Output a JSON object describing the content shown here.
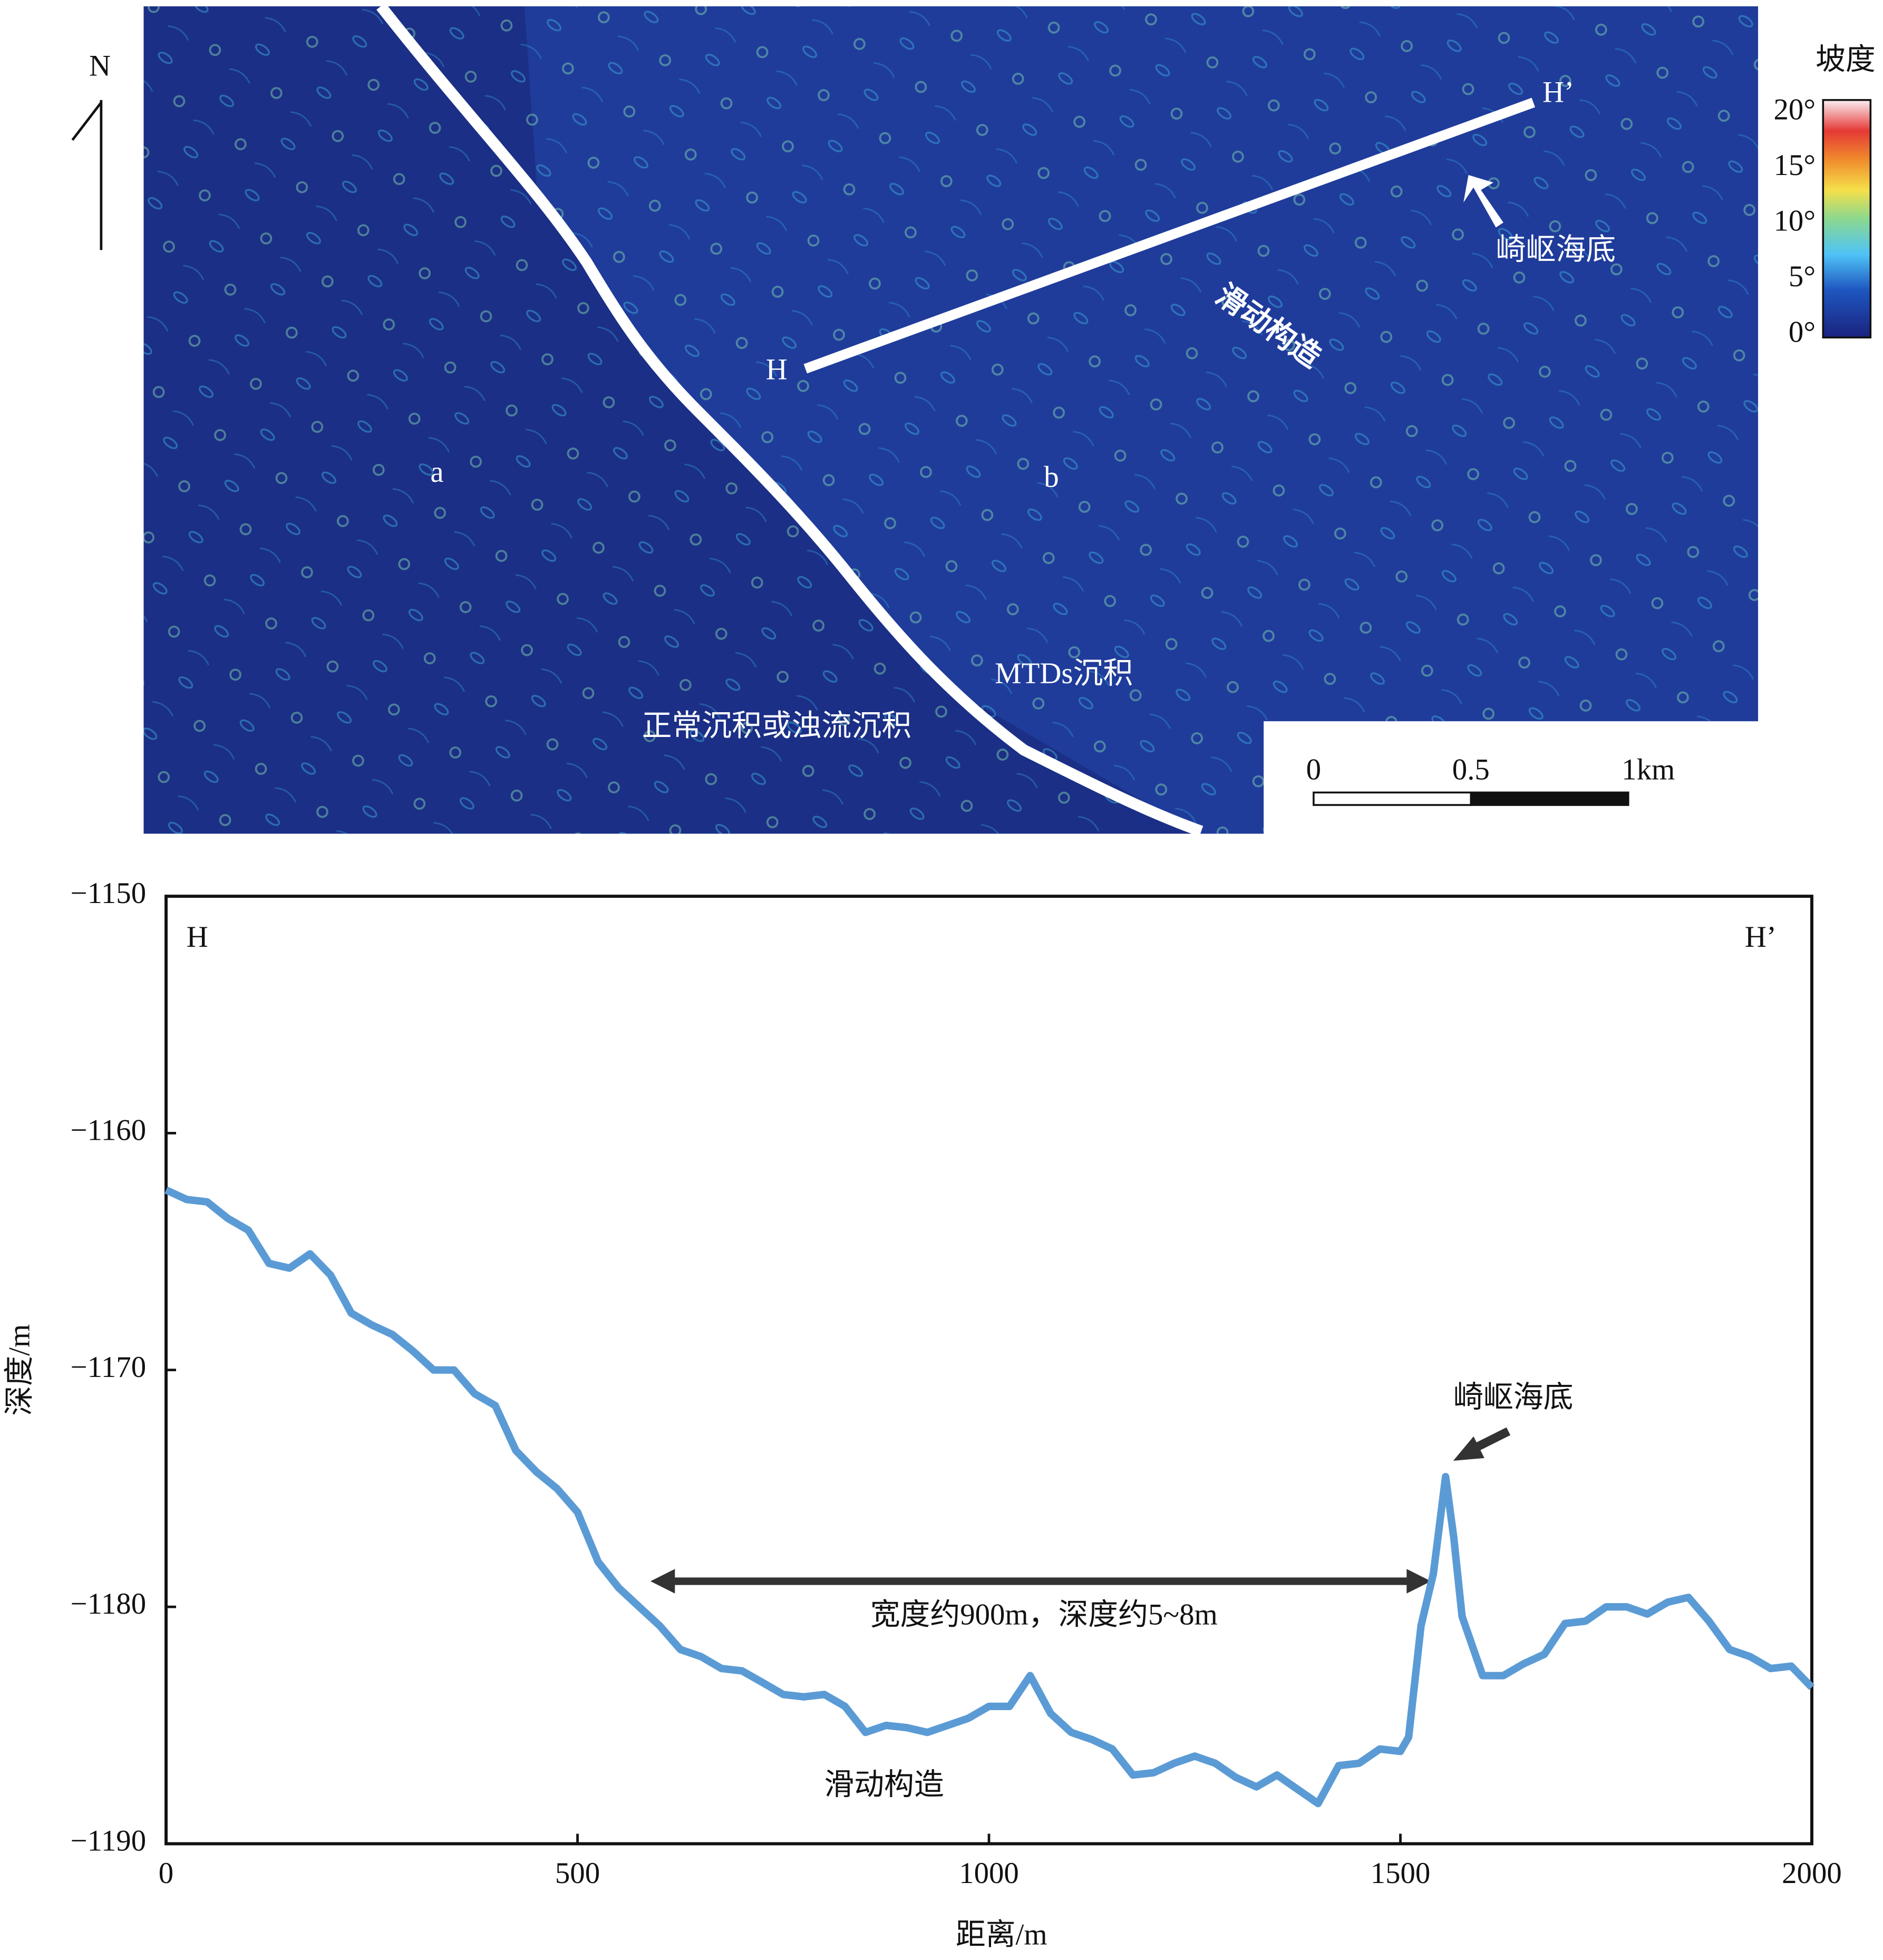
{
  "map": {
    "north": "N",
    "legend_title": "坡度",
    "legend_labels": [
      "20°",
      "15°",
      "10°",
      "5°",
      "0°"
    ],
    "profile_start": "H",
    "profile_end": "H’",
    "rough_seafloor": "崎岖海底",
    "slide": "滑动构造",
    "zone_a": "a",
    "zone_b": "b",
    "mtds": "MTDs沉积",
    "normal": "正常沉积或浊流沉积",
    "scale_labels": [
      "0",
      "0.5",
      "1km"
    ]
  },
  "chart_data": {
    "type": "line",
    "xlabel": "距离/m",
    "ylabel": "深度/m",
    "annotations": [
      "H",
      "H’",
      "崎岖海底",
      "宽度约900m，深度约5~8m",
      "滑动构造"
    ],
    "xlim": [
      0,
      2000
    ],
    "xticks": [
      0,
      500,
      1000,
      1500,
      2000
    ],
    "ylim": [
      -1190,
      -1150
    ],
    "yticks": [
      {
        "value": -1190,
        "label": "−1190"
      },
      {
        "value": -1180,
        "label": "−1180"
      },
      {
        "value": -1170,
        "label": "−1170"
      },
      {
        "value": -1160,
        "label": "−1160"
      },
      {
        "value": -1150,
        "label": "−1150"
      }
    ],
    "x": [
      0,
      25,
      50,
      75,
      100,
      125,
      150,
      175,
      200,
      225,
      250,
      275,
      300,
      325,
      350,
      375,
      400,
      425,
      450,
      475,
      500,
      525,
      550,
      575,
      600,
      625,
      650,
      675,
      700,
      725,
      750,
      775,
      800,
      825,
      850,
      875,
      900,
      925,
      950,
      975,
      1000,
      1025,
      1050,
      1075,
      1100,
      1125,
      1150,
      1175,
      1200,
      1225,
      1250,
      1275,
      1300,
      1325,
      1350,
      1375,
      1400,
      1425,
      1450,
      1475,
      1500,
      1510,
      1525,
      1540,
      1555,
      1565,
      1575,
      1600,
      1625,
      1650,
      1675,
      1700,
      1725,
      1750,
      1775,
      1800,
      1825,
      1850,
      1875,
      1900,
      1925,
      1950,
      1975,
      2000
    ],
    "series": [
      {
        "name": "深度",
        "color": "#5b9bd5",
        "values": [
          -1162.4,
          -1162.8,
          -1162.9,
          -1163.6,
          -1164.1,
          -1165.5,
          -1165.7,
          -1165.1,
          -1166.0,
          -1167.6,
          -1168.1,
          -1168.5,
          -1169.2,
          -1170.0,
          -1170.0,
          -1171.0,
          -1171.5,
          -1173.4,
          -1174.3,
          -1175.0,
          -1176.0,
          -1178.1,
          -1179.2,
          -1180.0,
          -1180.8,
          -1181.8,
          -1182.1,
          -1182.6,
          -1182.7,
          -1183.2,
          -1183.7,
          -1183.8,
          -1183.7,
          -1184.2,
          -1185.3,
          -1185.0,
          -1185.1,
          -1185.3,
          -1185.0,
          -1184.7,
          -1184.2,
          -1184.2,
          -1182.9,
          -1184.5,
          -1185.3,
          -1185.6,
          -1186.0,
          -1187.1,
          -1187.0,
          -1186.6,
          -1186.3,
          -1186.6,
          -1187.2,
          -1187.6,
          -1187.1,
          -1187.7,
          -1188.3,
          -1186.7,
          -1186.6,
          -1186.0,
          -1186.1,
          -1185.5,
          -1180.8,
          -1178.6,
          -1174.5,
          -1177.1,
          -1180.4,
          -1182.9,
          -1182.9,
          -1182.4,
          -1182.0,
          -1180.7,
          -1180.6,
          -1180.0,
          -1180.0,
          -1180.3,
          -1179.8,
          -1179.6,
          -1180.6,
          -1181.8,
          -1182.1,
          -1182.6,
          -1182.5,
          -1183.4
        ]
      }
    ]
  }
}
